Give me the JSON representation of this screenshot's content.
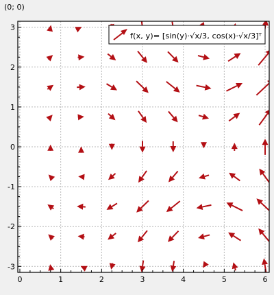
{
  "status": {
    "coordinate_readout": "(0; 0)"
  },
  "chart_data": {
    "type": "vector_field",
    "legend_label": "f(x, y)= [sin(y)·√x/3, cos(x)·√x/3]ᵀ",
    "legend_position": "top-right",
    "xlim": [
      -0.05,
      6.1
    ],
    "ylim": [
      -3.15,
      3.15
    ],
    "x_ticks": [
      0,
      1,
      2,
      3,
      4,
      5,
      6
    ],
    "y_ticks": [
      -3,
      -2,
      -1,
      0,
      1,
      2,
      3
    ],
    "grid": true,
    "arrow_color": "#b30f14",
    "sample_x": [
      0.75,
      1.5,
      2.25,
      3.0,
      3.75,
      4.5,
      5.25,
      6.0
    ],
    "sample_y": [
      -3.0,
      -2.25,
      -1.5,
      -0.75,
      0.0,
      0.75,
      1.5,
      2.25,
      3.0
    ],
    "vector_scale": 0.3
  }
}
